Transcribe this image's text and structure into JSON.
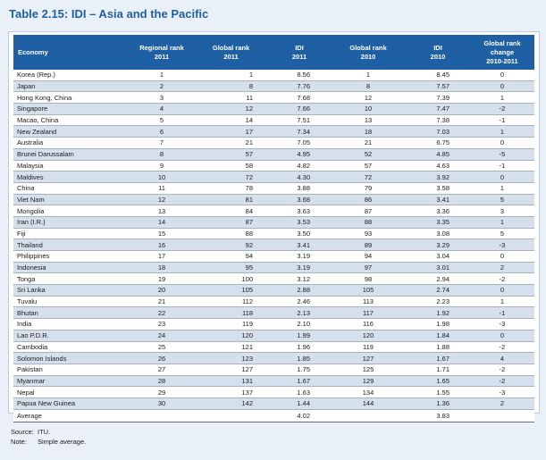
{
  "title": "Table 2.15: IDI – Asia and the Pacific",
  "headers": {
    "economy": "Economy",
    "regional_rank": [
      "Regional rank",
      "2011"
    ],
    "global_rank_2011": [
      "Global rank",
      "2011"
    ],
    "idi_2011": [
      "IDI",
      "2011"
    ],
    "global_rank_2010": [
      "Global rank",
      "2010"
    ],
    "idi_2010": [
      "IDI",
      "2010"
    ],
    "change": [
      "Global rank",
      "change",
      "2010-2011"
    ]
  },
  "rows": [
    [
      "Korea (Rep.)",
      "1",
      "1",
      "8.56",
      "1",
      "8.45",
      "0"
    ],
    [
      "Japan",
      "2",
      "8",
      "7.76",
      "8",
      "7.57",
      "0"
    ],
    [
      "Hong Kong, China",
      "3",
      "11",
      "7.68",
      "12",
      "7.39",
      "1"
    ],
    [
      "Singapore",
      "4",
      "12",
      "7.66",
      "10",
      "7.47",
      "-2"
    ],
    [
      "Macao, China",
      "5",
      "14",
      "7.51",
      "13",
      "7.38",
      "-1"
    ],
    [
      "New Zealand",
      "6",
      "17",
      "7.34",
      "18",
      "7.03",
      "1"
    ],
    [
      "Australia",
      "7",
      "21",
      "7.05",
      "21",
      "6.75",
      "0"
    ],
    [
      "Brunei Darussalam",
      "8",
      "57",
      "4.95",
      "52",
      "4.85",
      "-5"
    ],
    [
      "Malaysia",
      "9",
      "58",
      "4.82",
      "57",
      "4.63",
      "-1"
    ],
    [
      "Maldives",
      "10",
      "72",
      "4.30",
      "72",
      "3.92",
      "0"
    ],
    [
      "China",
      "11",
      "78",
      "3.88",
      "79",
      "3.58",
      "1"
    ],
    [
      "Viet Nam",
      "12",
      "81",
      "3.68",
      "86",
      "3.41",
      "5"
    ],
    [
      "Mongolia",
      "13",
      "84",
      "3.63",
      "87",
      "3.36",
      "3"
    ],
    [
      "Iran (I.R.)",
      "14",
      "87",
      "3.53",
      "88",
      "3.35",
      "1"
    ],
    [
      "Fiji",
      "15",
      "88",
      "3.50",
      "93",
      "3.08",
      "5"
    ],
    [
      "Thailand",
      "16",
      "92",
      "3.41",
      "89",
      "3.29",
      "-3"
    ],
    [
      "Philippines",
      "17",
      "94",
      "3.19",
      "94",
      "3.04",
      "0"
    ],
    [
      "Indonesia",
      "18",
      "95",
      "3.19",
      "97",
      "3.01",
      "2"
    ],
    [
      "Tonga",
      "19",
      "100",
      "3.12",
      "98",
      "2.94",
      "-2"
    ],
    [
      "Sri Lanka",
      "20",
      "105",
      "2.88",
      "105",
      "2.74",
      "0"
    ],
    [
      "Tuvalu",
      "21",
      "112",
      "2.46",
      "113",
      "2.23",
      "1"
    ],
    [
      "Bhutan",
      "22",
      "118",
      "2.13",
      "117",
      "1.92",
      "-1"
    ],
    [
      "India",
      "23",
      "119",
      "2.10",
      "116",
      "1.98",
      "-3"
    ],
    [
      "Lao P.D.R.",
      "24",
      "120",
      "1.99",
      "120",
      "1.84",
      "0"
    ],
    [
      "Cambodia",
      "25",
      "121",
      "1.96",
      "119",
      "1.88",
      "-2"
    ],
    [
      "Solomon Islands",
      "26",
      "123",
      "1.85",
      "127",
      "1.67",
      "4"
    ],
    [
      "Pakistan",
      "27",
      "127",
      "1.75",
      "125",
      "1.71",
      "-2"
    ],
    [
      "Myanmar",
      "28",
      "131",
      "1.67",
      "129",
      "1.65",
      "-2"
    ],
    [
      "Nepal",
      "29",
      "137",
      "1.63",
      "134",
      "1.55",
      "-3"
    ],
    [
      "Papua New Guinea",
      "30",
      "142",
      "1.44",
      "144",
      "1.36",
      "2"
    ]
  ],
  "average": {
    "label": "Average",
    "idi_2011": "4.02",
    "idi_2010": "3.83"
  },
  "notes": [
    {
      "label": "Source:",
      "text": "ITU."
    },
    {
      "label": "Note:",
      "text": "Simple average."
    }
  ]
}
